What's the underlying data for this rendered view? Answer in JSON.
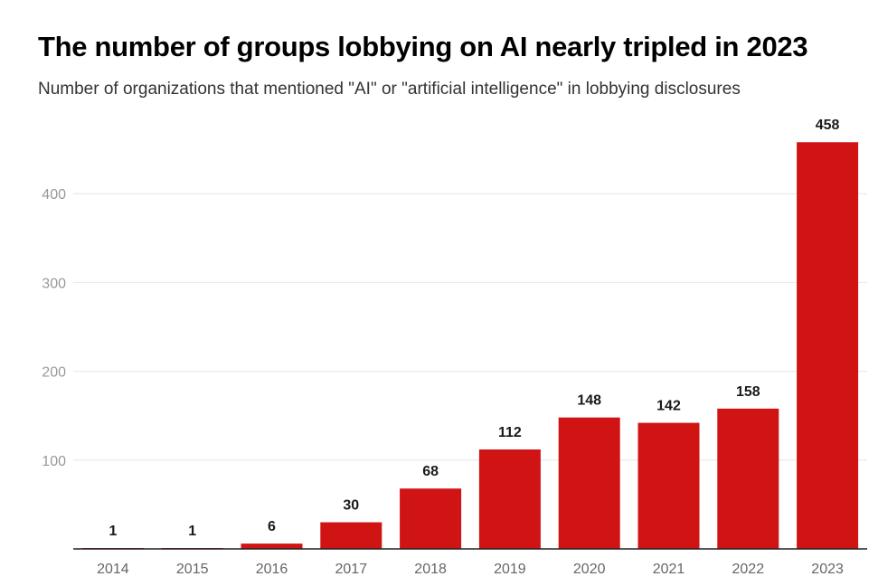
{
  "chart_data": {
    "type": "bar",
    "title": "The number of groups lobbying on AI nearly tripled in 2023",
    "subtitle": "Number of organizations that mentioned \"AI\" or \"artificial intelligence\" in lobbying disclosures",
    "categories": [
      "2014",
      "2015",
      "2016",
      "2017",
      "2018",
      "2019",
      "2020",
      "2021",
      "2022",
      "2023"
    ],
    "values": [
      1,
      1,
      6,
      30,
      68,
      112,
      148,
      142,
      158,
      458
    ],
    "xlabel": "",
    "ylabel": "",
    "ylim": [
      0,
      460
    ],
    "yticks": [
      100,
      200,
      300,
      400
    ],
    "grid": true,
    "legend": "none",
    "bar_color": "#d01414"
  }
}
